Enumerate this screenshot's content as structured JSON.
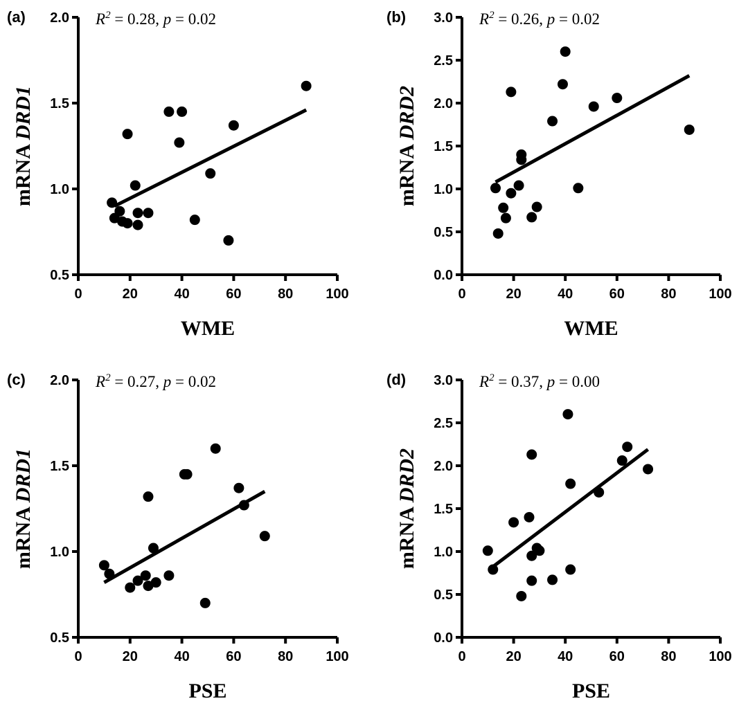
{
  "chart_data": [
    {
      "type": "scatter",
      "panel_label": "(a)",
      "annotation": {
        "r2": "0.28",
        "p": "0.02"
      },
      "xlabel": "WME",
      "ylabel_prefix": "mRNA ",
      "ylabel_gene": "DRD1",
      "xlim": [
        0,
        100
      ],
      "ylim": [
        0.5,
        2.0
      ],
      "x_ticks": [
        0,
        20,
        40,
        60,
        80,
        100
      ],
      "y_ticks": [
        0.5,
        1.0,
        1.5,
        2.0
      ],
      "y_tick_labels": [
        "0.5",
        "1.0",
        "1.5",
        "2.0"
      ],
      "points": [
        [
          13,
          0.92
        ],
        [
          14,
          0.83
        ],
        [
          16,
          0.87
        ],
        [
          17,
          0.81
        ],
        [
          19,
          0.8
        ],
        [
          19,
          1.32
        ],
        [
          22,
          1.02
        ],
        [
          23,
          0.86
        ],
        [
          23,
          0.79
        ],
        [
          27,
          0.86
        ],
        [
          35,
          1.45
        ],
        [
          39,
          1.27
        ],
        [
          40,
          1.45
        ],
        [
          45,
          0.82
        ],
        [
          51,
          1.09
        ],
        [
          58,
          0.7
        ],
        [
          60,
          1.37
        ],
        [
          88,
          1.6
        ]
      ],
      "fit_line": [
        [
          14,
          0.9
        ],
        [
          88,
          1.46
        ]
      ]
    },
    {
      "type": "scatter",
      "panel_label": "(b)",
      "annotation": {
        "r2": "0.26",
        "p": "0.02"
      },
      "xlabel": "WME",
      "ylabel_prefix": "mRNA ",
      "ylabel_gene": "DRD2",
      "xlim": [
        0,
        100
      ],
      "ylim": [
        0.0,
        3.0
      ],
      "x_ticks": [
        0,
        20,
        40,
        60,
        80,
        100
      ],
      "y_ticks": [
        0,
        0.5,
        1.0,
        1.5,
        2.0,
        2.5,
        3.0
      ],
      "y_tick_labels": [
        "0.0",
        "0.5",
        "1.0",
        "1.5",
        "2.0",
        "2.5",
        "3.0"
      ],
      "points": [
        [
          13,
          1.01
        ],
        [
          14,
          0.48
        ],
        [
          16,
          0.78
        ],
        [
          17,
          0.66
        ],
        [
          19,
          0.95
        ],
        [
          19,
          2.13
        ],
        [
          22,
          1.04
        ],
        [
          23,
          1.34
        ],
        [
          23,
          1.4
        ],
        [
          27,
          0.67
        ],
        [
          29,
          0.79
        ],
        [
          35,
          1.79
        ],
        [
          39,
          2.22
        ],
        [
          40,
          2.6
        ],
        [
          45,
          1.01
        ],
        [
          51,
          1.96
        ],
        [
          60,
          2.06
        ],
        [
          88,
          1.69
        ]
      ],
      "fit_line": [
        [
          13,
          1.08
        ],
        [
          88,
          2.32
        ]
      ]
    },
    {
      "type": "scatter",
      "panel_label": "(c)",
      "annotation": {
        "r2": "0.27",
        "p": "0.02"
      },
      "xlabel": "PSE",
      "ylabel_prefix": "mRNA ",
      "ylabel_gene": "DRD1",
      "xlim": [
        0,
        100
      ],
      "ylim": [
        0.5,
        2.0
      ],
      "x_ticks": [
        0,
        20,
        40,
        60,
        80,
        100
      ],
      "y_ticks": [
        0.5,
        1.0,
        1.5,
        2.0
      ],
      "y_tick_labels": [
        "0.5",
        "1.0",
        "1.5",
        "2.0"
      ],
      "points": [
        [
          10,
          0.92
        ],
        [
          12,
          0.87
        ],
        [
          20,
          0.79
        ],
        [
          23,
          0.83
        ],
        [
          26,
          0.86
        ],
        [
          27,
          0.8
        ],
        [
          27,
          1.32
        ],
        [
          29,
          1.02
        ],
        [
          30,
          0.82
        ],
        [
          35,
          0.86
        ],
        [
          41,
          1.45
        ],
        [
          42,
          1.45
        ],
        [
          49,
          0.7
        ],
        [
          53,
          1.6
        ],
        [
          62,
          1.37
        ],
        [
          64,
          1.27
        ],
        [
          72,
          1.09
        ]
      ],
      "fit_line": [
        [
          10,
          0.82
        ],
        [
          72,
          1.35
        ]
      ]
    },
    {
      "type": "scatter",
      "panel_label": "(d)",
      "annotation": {
        "r2": "0.37",
        "p": "0.00"
      },
      "xlabel": "PSE",
      "ylabel_prefix": "mRNA ",
      "ylabel_gene": "DRD2",
      "xlim": [
        0,
        100
      ],
      "ylim": [
        0.0,
        3.0
      ],
      "x_ticks": [
        0,
        20,
        40,
        60,
        80,
        100
      ],
      "y_ticks": [
        0,
        0.5,
        1.0,
        1.5,
        2.0,
        2.5,
        3.0
      ],
      "y_tick_labels": [
        "0.0",
        "0.5",
        "1.0",
        "1.5",
        "2.0",
        "2.5",
        "3.0"
      ],
      "points": [
        [
          10,
          1.01
        ],
        [
          12,
          0.79
        ],
        [
          20,
          1.34
        ],
        [
          23,
          0.48
        ],
        [
          26,
          1.4
        ],
        [
          27,
          0.66
        ],
        [
          27,
          0.95
        ],
        [
          27,
          2.13
        ],
        [
          29,
          1.04
        ],
        [
          30,
          1.01
        ],
        [
          35,
          0.67
        ],
        [
          41,
          2.6
        ],
        [
          42,
          1.79
        ],
        [
          42,
          0.79
        ],
        [
          53,
          1.69
        ],
        [
          62,
          2.06
        ],
        [
          64,
          2.22
        ],
        [
          72,
          1.96
        ]
      ],
      "fit_line": [
        [
          11,
          0.8
        ],
        [
          72,
          2.19
        ]
      ]
    }
  ]
}
